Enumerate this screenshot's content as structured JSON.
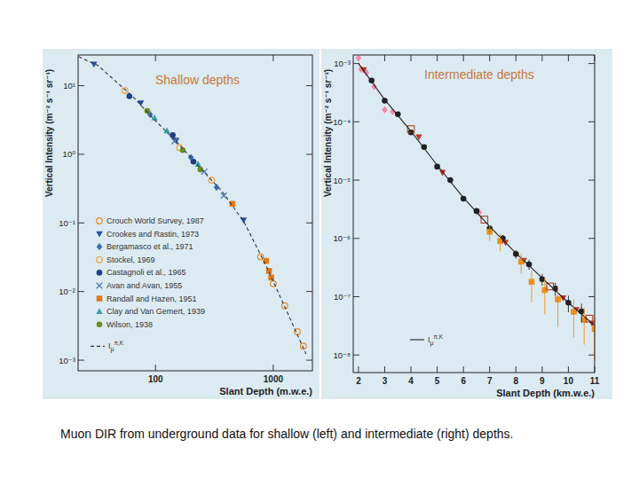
{
  "chart_data": [
    {
      "type": "scatter",
      "title": "Shallow depths",
      "x_label": "Slant Depth (m.w.e.)",
      "y_label": "Vertical Intensity (m⁻² s⁻¹ sr⁻¹)",
      "log": true,
      "grid": false,
      "legend": "lower left",
      "xlim": [
        22,
        2150
      ],
      "ylim": [
        0.0007,
        28
      ],
      "xticks": [
        100,
        1000
      ],
      "yticks": [
        {
          "value": 10,
          "label": "10¹"
        },
        {
          "value": 1,
          "label": "10⁰"
        },
        {
          "value": 0.1,
          "label": "10⁻¹"
        },
        {
          "value": 0.01,
          "label": "10⁻²"
        },
        {
          "value": 0.001,
          "label": "10⁻³"
        }
      ],
      "series": [
        {
          "name": "Crouch World Survey, 1987",
          "color": "#e08a2b",
          "marker": "circle-open",
          "x": [
            780,
            1000,
            1250,
            1600,
            1800
          ],
          "values": [
            0.032,
            0.013,
            0.0062,
            0.0026,
            0.0016
          ]
        },
        {
          "name": "Crookes and Rastin, 1973",
          "color": "#2a4da0",
          "marker": "triangle-down",
          "x": [
            30,
            75,
            150,
            560
          ],
          "values": [
            20.5,
            5.6,
            1.6,
            0.11
          ]
        },
        {
          "name": "Bergamasco et al., 1971",
          "color": "#3c6fb0",
          "marker": "diamond",
          "x": [
            90,
            200,
            330
          ],
          "values": [
            3.8,
            0.9,
            0.33
          ]
        },
        {
          "name": "Stockel, 1969",
          "color": "#e8a040",
          "marker": "circle-open",
          "x": [
            55,
            160,
            300
          ],
          "values": [
            8.5,
            1.25,
            0.42
          ]
        },
        {
          "name": "Castagnoli et al., 1965",
          "color": "#1f3f8f",
          "marker": "circle",
          "x": [
            60,
            140,
            210
          ],
          "values": [
            7.0,
            1.9,
            0.78
          ]
        },
        {
          "name": "Avan and Avan, 1955",
          "color": "#4a7ac0",
          "marker": "x",
          "x": [
            145,
            260,
            380
          ],
          "values": [
            1.55,
            0.56,
            0.25
          ]
        },
        {
          "name": "Randall and Hazen, 1951",
          "color": "#e07a1a",
          "marker": "square",
          "x": [
            450,
            870,
            920,
            960
          ],
          "values": [
            0.19,
            0.028,
            0.02,
            0.016
          ]
        },
        {
          "name": "Clay and Van Gemert, 1939",
          "color": "#3aa0a8",
          "marker": "triangle",
          "x": [
            98,
            125,
            230
          ],
          "values": [
            3.4,
            2.2,
            0.72
          ]
        },
        {
          "name": "Wilson, 1938",
          "color": "#6b8e23",
          "marker": "circle",
          "x": [
            85,
            170,
            240
          ],
          "values": [
            4.3,
            1.15,
            0.6
          ]
        },
        {
          "name": "Iμπ,K",
          "type": "line",
          "line_style": "dashed",
          "color": "#333333",
          "x": [
            22.2,
            32.4,
            45.9,
            64.9,
            100,
            154,
            238,
            366,
            565,
            871,
            1343,
            1897
          ],
          "values": [
            26.5,
            19.7,
            11.6,
            6.8,
            3.07,
            1.47,
            0.64,
            0.29,
            0.103,
            0.0236,
            0.0046,
            0.00123
          ]
        }
      ]
    },
    {
      "type": "scatter",
      "title": "Intermediate depths",
      "x_label": "Slant Depth (km.w.e.)",
      "y_label": "Vertical Intensity (m⁻² s⁻¹ sr⁻¹)",
      "log": "y",
      "grid": false,
      "legend": "lower left",
      "xlim": [
        1.8,
        11
      ],
      "ylim": [
        5e-09,
        0.0014
      ],
      "xticks": [
        2,
        3,
        4,
        5,
        6,
        7,
        8,
        9,
        10,
        11
      ],
      "yticks": [
        {
          "value": 0.001,
          "label": "10⁻³"
        },
        {
          "value": 0.0001,
          "label": "10⁻⁴"
        },
        {
          "value": 1e-05,
          "label": "10⁻⁵"
        },
        {
          "value": 1e-06,
          "label": "10⁻⁶"
        },
        {
          "value": 1e-07,
          "label": "10⁻⁷"
        },
        {
          "value": 1e-08,
          "label": "10⁻⁸"
        }
      ],
      "series": [
        {
          "color": "#f08aa8",
          "marker": "diamond",
          "x": [
            2.0,
            2.1,
            2.3,
            2.6,
            3.0,
            3.3,
            6.6
          ],
          "values": [
            0.00125,
            0.0008,
            0.0007,
            0.0004,
            0.00016,
            0.00015,
            2.8e-06
          ]
        },
        {
          "color": "#222222",
          "marker": "circle",
          "x": [
            2.5,
            3.0,
            3.5,
            4.0,
            4.5,
            5.0,
            5.5,
            6.0,
            6.5,
            7.0,
            7.5,
            8.0,
            8.5,
            9.0,
            9.5,
            10.0,
            10.5
          ],
          "values": [
            0.00051,
            0.00023,
            0.000135,
            6.6e-05,
            3.7e-05,
            1.7e-05,
            1e-05,
            4.8e-06,
            2.95e-06,
            1.48e-06,
            1e-06,
            5.4e-07,
            3.6e-07,
            2e-07,
            1.38e-07,
            7.9e-08,
            5.6e-08
          ],
          "errors": [
            3e-05,
            1.5e-05,
            1e-05,
            5e-06,
            3e-06,
            1.5e-06,
            1e-06,
            5e-07,
            3.5e-07,
            2e-07,
            1.5e-07,
            9e-08,
            7e-08,
            4.5e-08,
            3.5e-08,
            2.5e-08,
            2e-08
          ]
        },
        {
          "color": "#c0302a",
          "marker": "triangle-down",
          "x": [
            2.2,
            4.3,
            5.2,
            7.6,
            8.3,
            9.8,
            10.3,
            10.9
          ],
          "values": [
            0.00078,
            5.5e-05,
            1.35e-05,
            8.5e-07,
            4.2e-07,
            9.5e-08,
            6e-08,
            3.5e-08
          ]
        },
        {
          "color": "#e89020",
          "marker": "square",
          "x": [
            7.0,
            7.4,
            8.2,
            8.6,
            9.1,
            9.6,
            10.2,
            10.6,
            11.0
          ],
          "values": [
            1.3e-06,
            9e-07,
            4e-07,
            1.8e-07,
            1.3e-07,
            9e-08,
            5.5e-08,
            4e-08,
            2.8e-08
          ],
          "errors": [
            4e-07,
            3e-07,
            1.5e-07,
            1e-07,
            8e-08,
            6e-08,
            3.5e-08,
            2.5e-08,
            2e-08
          ]
        },
        {
          "color": "#b04020",
          "marker": "square-open",
          "x": [
            4.0,
            6.8,
            9.3,
            10.8
          ],
          "values": [
            7.5e-05,
            2.1e-06,
            1.5e-07,
            4.2e-08
          ]
        },
        {
          "name": "Iμπ,K",
          "type": "line",
          "line_style": "solid",
          "color": "#222222",
          "x": [
            2,
            3,
            4,
            5,
            6,
            7,
            8,
            9,
            10,
            11
          ],
          "values": [
            0.001,
            0.00024,
            6.9e-05,
            1.8e-05,
            5e-06,
            1.6e-06,
            5.6e-07,
            2.1e-07,
            7.9e-08,
            3.2e-08
          ]
        }
      ]
    }
  ],
  "caption": "Muon DIR from underground data for shallow (left) and intermediate (right) depths."
}
